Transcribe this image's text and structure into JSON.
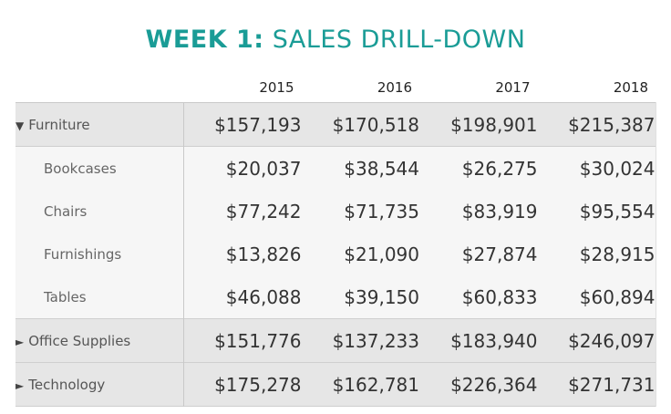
{
  "title": {
    "bold": "WEEK 1:",
    "light": "SALES DRILL-DOWN"
  },
  "colors": {
    "title": "#1a9c96",
    "category_row": "#e6e6e6",
    "subcategory_row": "#f6f6f6"
  },
  "chart_data": {
    "type": "table",
    "columns": [
      "2015",
      "2016",
      "2017",
      "2018"
    ],
    "rows": [
      {
        "label": "Furniture",
        "level": "category",
        "expanded": true,
        "icon": "triangle-down-icon",
        "values": [
          "$157,193",
          "$170,518",
          "$198,901",
          "$215,387"
        ]
      },
      {
        "label": "Bookcases",
        "level": "subcategory",
        "values": [
          "$20,037",
          "$38,544",
          "$26,275",
          "$30,024"
        ]
      },
      {
        "label": "Chairs",
        "level": "subcategory",
        "values": [
          "$77,242",
          "$71,735",
          "$83,919",
          "$95,554"
        ]
      },
      {
        "label": "Furnishings",
        "level": "subcategory",
        "values": [
          "$13,826",
          "$21,090",
          "$27,874",
          "$28,915"
        ]
      },
      {
        "label": "Tables",
        "level": "subcategory",
        "values": [
          "$46,088",
          "$39,150",
          "$60,833",
          "$60,894"
        ]
      },
      {
        "label": "Office Supplies",
        "level": "category",
        "expanded": false,
        "icon": "triangle-right-icon",
        "values": [
          "$151,776",
          "$137,233",
          "$183,940",
          "$246,097"
        ]
      },
      {
        "label": "Technology",
        "level": "category",
        "expanded": false,
        "icon": "triangle-right-icon",
        "values": [
          "$175,278",
          "$162,781",
          "$226,364",
          "$271,731"
        ]
      }
    ]
  }
}
